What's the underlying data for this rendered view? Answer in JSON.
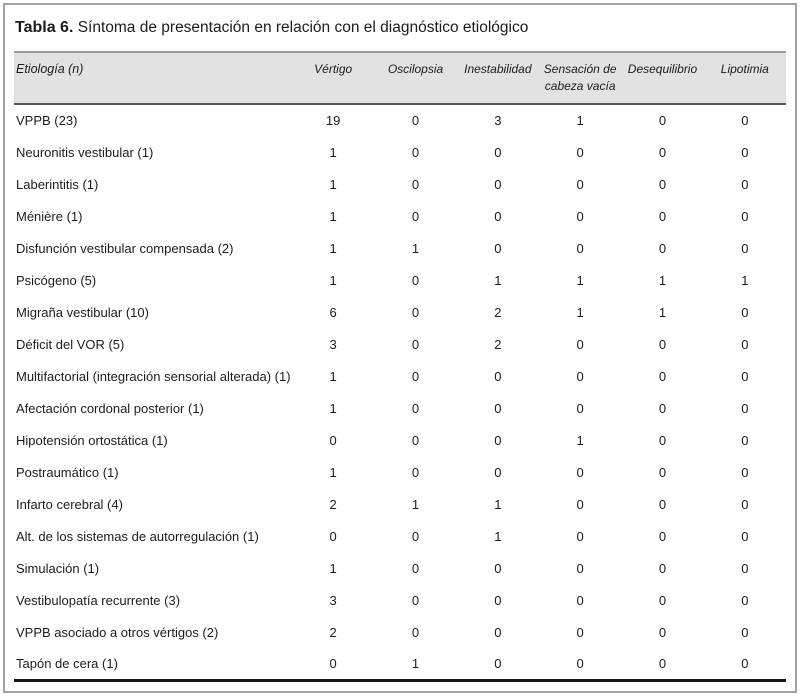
{
  "colors": {
    "header_background": "#e2e2e2",
    "rule_dark": "#161616",
    "frame_border": "#a3a3a3"
  },
  "table": {
    "label": "Tabla 6.",
    "title": "Síntoma de presentación en relación con el diagnóstico etiológico",
    "columns": [
      "Etiología (n)",
      "Vértigo",
      "Oscilopsia",
      "Inestabilidad",
      "Sensación de cabeza vacía",
      "Desequilibrio",
      "Lipotimia"
    ],
    "rows": [
      {
        "etiologia": "VPPB (23)",
        "values": [
          19,
          0,
          3,
          1,
          0,
          0
        ]
      },
      {
        "etiologia": "Neuronitis vestibular (1)",
        "values": [
          1,
          0,
          0,
          0,
          0,
          0
        ]
      },
      {
        "etiologia": "Laberintitis (1)",
        "values": [
          1,
          0,
          0,
          0,
          0,
          0
        ]
      },
      {
        "etiologia": "Ménière (1)",
        "values": [
          1,
          0,
          0,
          0,
          0,
          0
        ]
      },
      {
        "etiologia": "Disfunción vestibular compensada (2)",
        "values": [
          1,
          1,
          0,
          0,
          0,
          0
        ]
      },
      {
        "etiologia": "Psicógeno (5)",
        "values": [
          1,
          0,
          1,
          1,
          1,
          1
        ]
      },
      {
        "etiologia": "Migraña vestibular (10)",
        "values": [
          6,
          0,
          2,
          1,
          1,
          0
        ]
      },
      {
        "etiologia": "Déficit del VOR (5)",
        "values": [
          3,
          0,
          2,
          0,
          0,
          0
        ]
      },
      {
        "etiologia": "Multifactorial (integración sensorial alterada) (1)",
        "values": [
          1,
          0,
          0,
          0,
          0,
          0
        ]
      },
      {
        "etiologia": "Afectación cordonal posterior (1)",
        "values": [
          1,
          0,
          0,
          0,
          0,
          0
        ]
      },
      {
        "etiologia": "Hipotensión ortostática (1)",
        "values": [
          0,
          0,
          0,
          1,
          0,
          0
        ]
      },
      {
        "etiologia": "Postraumático (1)",
        "values": [
          1,
          0,
          0,
          0,
          0,
          0
        ]
      },
      {
        "etiologia": "Infarto cerebral (4)",
        "values": [
          2,
          1,
          1,
          0,
          0,
          0
        ]
      },
      {
        "etiologia": "Alt. de los sistemas de autorregulación (1)",
        "values": [
          0,
          0,
          1,
          0,
          0,
          0
        ]
      },
      {
        "etiologia": "Simulación (1)",
        "values": [
          1,
          0,
          0,
          0,
          0,
          0
        ]
      },
      {
        "etiologia": "Vestibulopatía recurrente (3)",
        "values": [
          3,
          0,
          0,
          0,
          0,
          0
        ]
      },
      {
        "etiologia": "VPPB asociado a otros vértigos (2)",
        "values": [
          2,
          0,
          0,
          0,
          0,
          0
        ]
      },
      {
        "etiologia": "Tapón de cera (1)",
        "values": [
          0,
          1,
          0,
          0,
          0,
          0
        ]
      }
    ]
  }
}
